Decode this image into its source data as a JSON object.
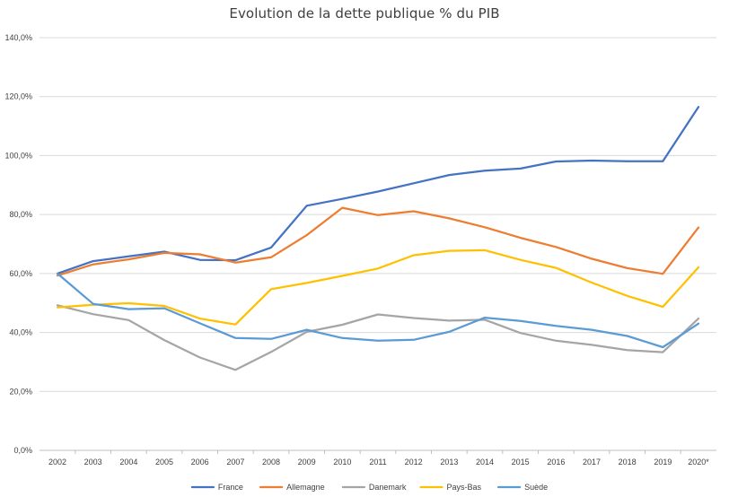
{
  "chart_data": {
    "type": "line",
    "title": "Evolution de la dette publique % du PIB",
    "xlabel": "",
    "ylabel": "",
    "categories": [
      "2002",
      "2003",
      "2004",
      "2005",
      "2006",
      "2007",
      "2008",
      "2009",
      "2010",
      "2011",
      "2012",
      "2013",
      "2014",
      "2015",
      "2016",
      "2017",
      "2018",
      "2019",
      "2020*"
    ],
    "ylim": [
      0,
      140
    ],
    "y_ticks": [
      0,
      20,
      40,
      60,
      80,
      100,
      120,
      140
    ],
    "y_tick_labels": [
      "0,0%",
      "20,0%",
      "40,0%",
      "60,0%",
      "80,0%",
      "100,0%",
      "120,0%",
      "140,0%"
    ],
    "grid": true,
    "legend_position": "bottom",
    "series": [
      {
        "name": "France",
        "color": "#4472C4",
        "values": [
          60.0,
          64.2,
          65.8,
          67.4,
          64.6,
          64.5,
          68.8,
          83.0,
          85.3,
          87.8,
          90.6,
          93.4,
          94.9,
          95.6,
          98.0,
          98.3,
          98.1,
          98.1,
          116.5
        ]
      },
      {
        "name": "Allemagne",
        "color": "#ED7D31",
        "values": [
          59.3,
          63.1,
          64.8,
          67.0,
          66.5,
          63.7,
          65.5,
          73.0,
          82.3,
          79.8,
          81.1,
          78.7,
          75.7,
          72.1,
          69.0,
          65.0,
          61.8,
          59.9,
          75.6
        ]
      },
      {
        "name": "Danemark",
        "color": "#A5A5A5",
        "values": [
          49.2,
          46.2,
          44.2,
          37.4,
          31.5,
          27.3,
          33.4,
          40.2,
          42.6,
          46.1,
          44.9,
          44.0,
          44.3,
          39.8,
          37.2,
          35.8,
          34.0,
          33.3,
          44.7
        ]
      },
      {
        "name": "Pays-Bas",
        "color": "#FFC000",
        "values": [
          48.5,
          49.4,
          49.9,
          49.0,
          44.7,
          42.7,
          54.7,
          56.8,
          59.2,
          61.7,
          66.2,
          67.7,
          67.9,
          64.6,
          61.9,
          56.9,
          52.4,
          48.7,
          62.1
        ]
      },
      {
        "name": "Suède",
        "color": "#5B9BD5",
        "values": [
          60.0,
          49.7,
          47.9,
          48.2,
          43.1,
          38.1,
          37.8,
          40.9,
          38.1,
          37.2,
          37.5,
          40.2,
          45.0,
          43.9,
          42.2,
          40.9,
          38.8,
          35.0,
          43.0
        ]
      }
    ]
  }
}
